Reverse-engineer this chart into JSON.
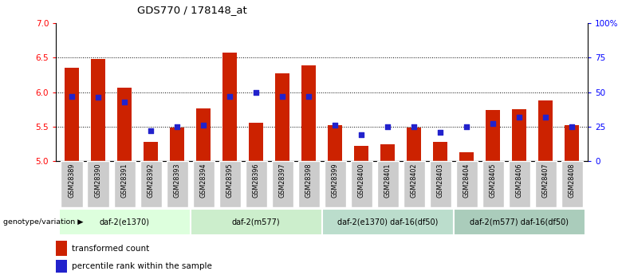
{
  "title": "GDS770 / 178148_at",
  "samples": [
    "GSM28389",
    "GSM28390",
    "GSM28391",
    "GSM28392",
    "GSM28393",
    "GSM28394",
    "GSM28395",
    "GSM28396",
    "GSM28397",
    "GSM28398",
    "GSM28399",
    "GSM28400",
    "GSM28401",
    "GSM28402",
    "GSM28403",
    "GSM28404",
    "GSM28405",
    "GSM28406",
    "GSM28407",
    "GSM28408"
  ],
  "bar_values": [
    6.35,
    6.48,
    6.06,
    5.28,
    5.48,
    5.76,
    6.58,
    5.56,
    6.27,
    6.39,
    5.52,
    5.22,
    5.24,
    5.49,
    5.28,
    5.12,
    5.74,
    5.75,
    5.88,
    5.52
  ],
  "dot_values": [
    47,
    46,
    43,
    22,
    25,
    26,
    47,
    50,
    47,
    47,
    26,
    19,
    25,
    25,
    21,
    25,
    27,
    32,
    32,
    25
  ],
  "ylim_left": [
    5.0,
    7.0
  ],
  "ylim_right": [
    0,
    100
  ],
  "yticks_left": [
    5.0,
    5.5,
    6.0,
    6.5,
    7.0
  ],
  "yticks_right": [
    0,
    25,
    50,
    75,
    100
  ],
  "ytick_labels_right": [
    "0",
    "25",
    "50",
    "75",
    "100%"
  ],
  "dotted_lines": [
    5.5,
    6.0,
    6.5
  ],
  "bar_color": "#cc2200",
  "dot_color": "#2222cc",
  "group_colors": [
    "#ddffdd",
    "#cceecc",
    "#bbddcc",
    "#aaccbb"
  ],
  "groups": [
    {
      "label": "daf-2(e1370)",
      "start": 0,
      "end": 5
    },
    {
      "label": "daf-2(m577)",
      "start": 5,
      "end": 10
    },
    {
      "label": "daf-2(e1370) daf-16(df50)",
      "start": 10,
      "end": 15
    },
    {
      "label": "daf-2(m577) daf-16(df50)",
      "start": 15,
      "end": 20
    }
  ],
  "genotype_label": "genotype/variation",
  "legend_bar_label": "transformed count",
  "legend_dot_label": "percentile rank within the sample",
  "sample_box_color": "#cccccc",
  "spine_color": "#000000"
}
